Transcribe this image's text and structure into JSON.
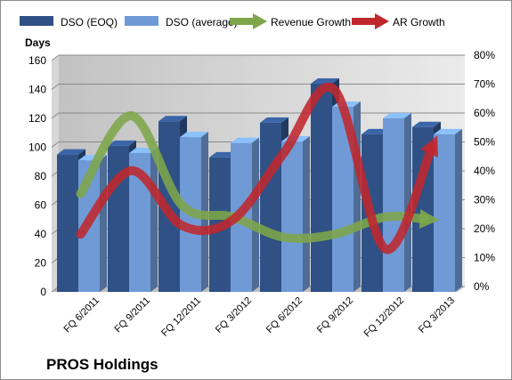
{
  "company": "PROS Holdings",
  "colors": {
    "dso_eoq": "#2f5186",
    "dso_avg": "#6f9ad6",
    "revenue_growth": "#7ea64a",
    "ar_growth": "#c0272d",
    "plot_bg": "#e0e0e0",
    "wall": "#c6c6c6"
  },
  "chart_data": {
    "type": "bar",
    "categories": [
      "FQ 6/2011",
      "FQ 9/2011",
      "FQ 12/2011",
      "FQ 3/2012",
      "FQ 6/2012",
      "FQ 9/2012",
      "FQ 12/2012",
      "FQ 3/2013"
    ],
    "y_left": {
      "label": "Days",
      "min": 0,
      "max": 160,
      "ticks": [
        "0",
        "20",
        "40",
        "60",
        "80",
        "100",
        "120",
        "140",
        "160"
      ]
    },
    "y_right": {
      "min": 0,
      "max": 80,
      "ticks": [
        "0%",
        "10%",
        "20%",
        "30%",
        "40%",
        "50%",
        "60%",
        "70%",
        "80%"
      ]
    },
    "legend_position": "top",
    "grid": true,
    "series": [
      {
        "name": "DSO (EOQ)",
        "type": "bar",
        "axis": "left",
        "values": [
          95,
          101,
          118,
          93,
          117,
          144,
          109,
          114
        ]
      },
      {
        "name": "DSO (average)",
        "type": "bar",
        "axis": "left",
        "values": [
          91,
          96,
          107,
          103,
          104,
          128,
          120,
          109
        ]
      },
      {
        "name": "Revenue Growth",
        "type": "line",
        "axis": "right",
        "values": [
          33,
          60,
          29,
          25,
          18,
          19,
          25,
          24
        ]
      },
      {
        "name": "AR Growth",
        "type": "line",
        "axis": "right",
        "values": [
          19,
          41,
          22,
          24,
          47,
          69,
          14,
          52
        ]
      }
    ]
  }
}
